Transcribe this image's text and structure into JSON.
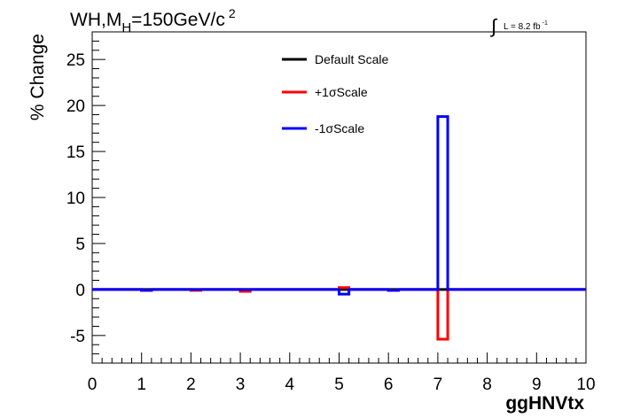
{
  "chart_data": {
    "type": "line",
    "title_main": "WH,M",
    "title_sub": "H",
    "title_rest": "=150GeV/c",
    "title_sup": "2",
    "lumi_label": "L = 8.2 fb",
    "lumi_sup": "-1",
    "xlabel": "ggHNVtx",
    "ylabel": "% Change",
    "xlim": [
      0,
      10
    ],
    "ylim": [
      -8,
      28
    ],
    "x_ticks": [
      0,
      1,
      2,
      3,
      4,
      5,
      6,
      7,
      8,
      9,
      10
    ],
    "x_tick_labels": [
      "0",
      "1",
      "2",
      "3",
      "4",
      "5",
      "6",
      "7",
      "8",
      "9",
      "10"
    ],
    "y_ticks": [
      -5,
      0,
      5,
      10,
      15,
      20,
      25
    ],
    "y_tick_labels": [
      "-5",
      "0",
      "5",
      "10",
      "15",
      "20",
      "25"
    ],
    "bin_edges": [
      0,
      0.2,
      0.4,
      0.6,
      0.8,
      1.0,
      1.2,
      1.4,
      1.6,
      1.8,
      2.0,
      2.2,
      2.4,
      2.6,
      2.8,
      3.0,
      3.2,
      3.4,
      3.6,
      3.8,
      4.0,
      4.2,
      4.4,
      4.6,
      4.8,
      5.0,
      5.2,
      5.4,
      5.6,
      5.8,
      6.0,
      6.2,
      6.4,
      6.6,
      6.8,
      7.0,
      7.2,
      7.4,
      7.6,
      7.8,
      8.0,
      8.2,
      8.4,
      8.6,
      8.8,
      9.0,
      9.2,
      9.4,
      9.6,
      9.8,
      10.0
    ],
    "legend_position": "top-center",
    "series": [
      {
        "name": "Default Scale",
        "color": "#000000",
        "values": [
          0,
          0,
          0,
          0,
          0,
          0,
          0,
          0,
          0,
          0,
          0,
          0,
          0,
          0,
          0,
          0,
          0,
          0,
          0,
          0,
          0,
          0,
          0,
          0,
          0,
          0,
          0,
          0,
          0,
          0,
          0,
          0,
          0,
          0,
          0,
          0,
          0,
          0,
          0,
          0,
          0,
          0,
          0,
          0,
          0,
          0,
          0,
          0,
          0,
          0
        ]
      },
      {
        "name": "+1σScale",
        "color": "#ff0000",
        "values": [
          0,
          0,
          0,
          0,
          0,
          -0.1,
          0,
          0,
          0,
          0,
          -0.1,
          0,
          0,
          0,
          0,
          -0.2,
          0,
          0,
          0,
          0,
          0,
          0,
          0,
          0,
          0,
          0.2,
          0,
          0,
          0,
          0,
          -0.1,
          0,
          0,
          0,
          0,
          -5.4,
          0,
          0,
          0,
          0,
          0,
          0,
          0,
          0,
          0,
          0,
          0,
          0,
          0,
          0
        ]
      },
      {
        "name": "-1σScale",
        "color": "#0000ff",
        "values": [
          0,
          0,
          0,
          0,
          0,
          -0.1,
          0,
          0,
          0,
          0,
          0,
          0,
          0,
          0,
          0,
          0,
          0,
          0,
          0,
          0,
          0,
          0,
          0,
          0,
          0,
          -0.5,
          0,
          0,
          0,
          0,
          -0.1,
          0,
          0,
          0,
          0,
          18.8,
          0,
          0,
          0,
          0,
          0,
          0,
          0,
          0,
          0,
          0,
          0,
          0,
          0,
          0
        ]
      }
    ]
  }
}
